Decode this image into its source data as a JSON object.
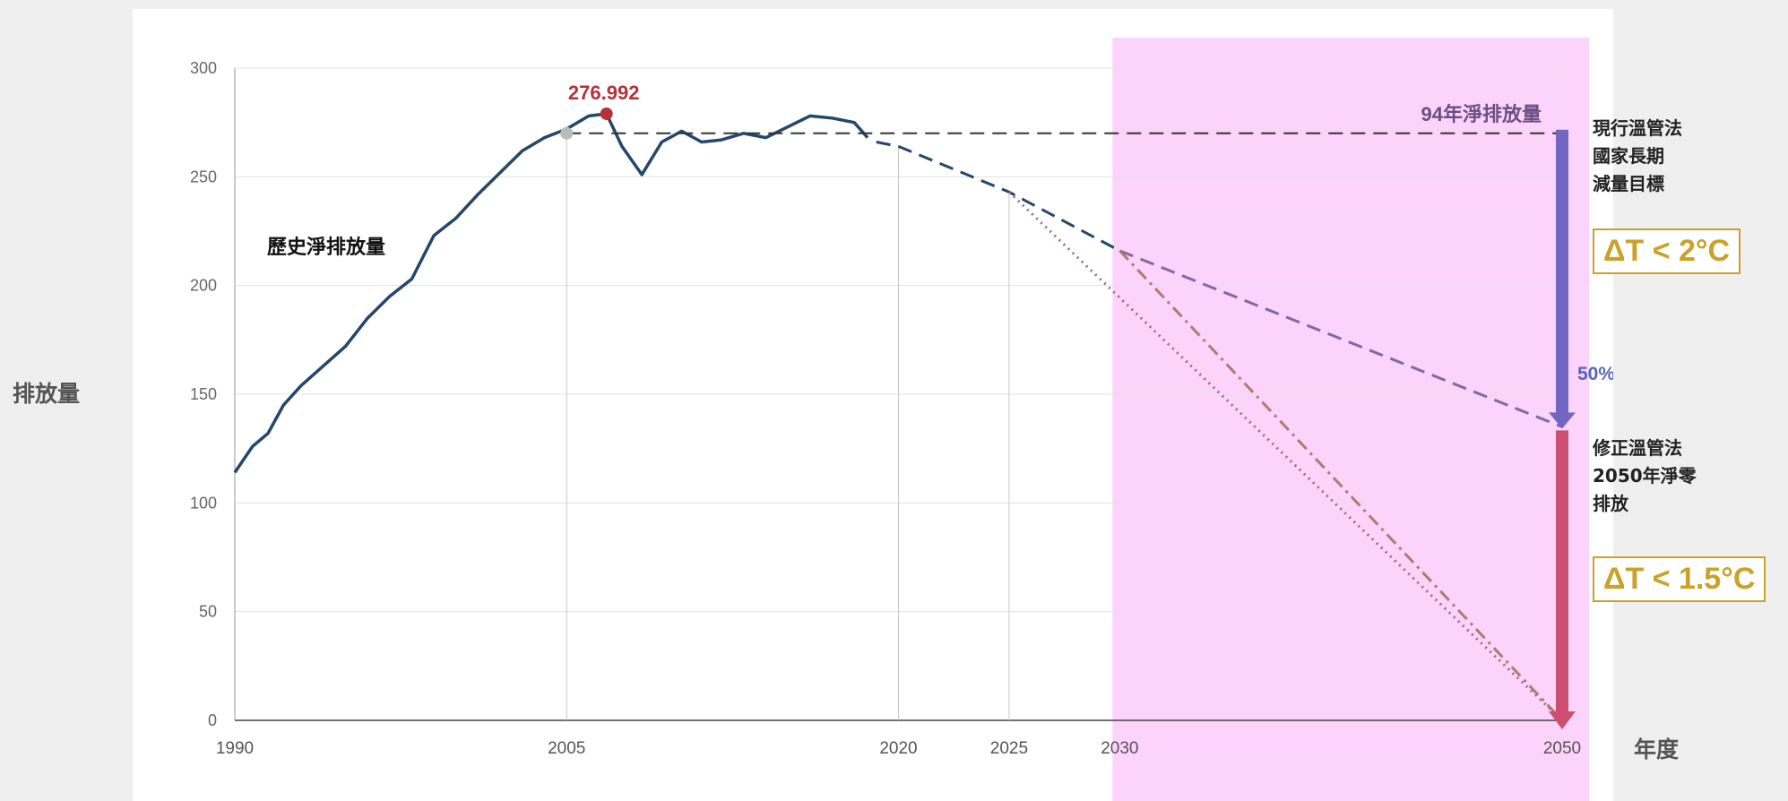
{
  "chart_data": {
    "type": "line",
    "xlabel": "年度",
    "ylabel": "排放量",
    "ylim": [
      0,
      300
    ],
    "xlim": [
      1990,
      2050
    ],
    "y_ticks": [
      "0",
      "50",
      "100",
      "150",
      "200",
      "250",
      "300"
    ],
    "x_ticks": [
      "1990",
      "2005",
      "2020",
      "2025",
      "2030",
      "2050"
    ],
    "grid": true,
    "series": [
      {
        "name": "歷史淨排放量",
        "style": "solid",
        "color": "#24476a",
        "x": [
          1990,
          1990.8,
          1991.5,
          1992.2,
          1993,
          1994,
          1995,
          1996,
          1997,
          1998,
          1999,
          2000,
          2001,
          2002,
          2003,
          2004,
          2005,
          2006,
          2006.8,
          2007.5,
          2008.4,
          2009.3,
          2010.2,
          2011.1,
          2012,
          2013,
          2014,
          2015,
          2016,
          2017,
          2018,
          2018.6
        ],
        "y": [
          114,
          126,
          132,
          145,
          154,
          163,
          172,
          185,
          195,
          203,
          223,
          231,
          242,
          252,
          262,
          268,
          272,
          278,
          279,
          264,
          251,
          266,
          271,
          266,
          267,
          270,
          268,
          273,
          278,
          277,
          275,
          268
        ]
      },
      {
        "name": "現行溫管法",
        "style": "dashed",
        "color": "#24476a",
        "x": [
          2019,
          2020,
          2025,
          2030
        ],
        "y": [
          266,
          264,
          243,
          216
        ]
      },
      {
        "name": "現行溫管法",
        "style": "dashed",
        "color": "#7d6aa8",
        "x": [
          2030,
          2050
        ],
        "y": [
          216,
          135
        ]
      },
      {
        "name": "修正溫管法",
        "style": "dashdot",
        "color": "#b07a6e",
        "x": [
          2030,
          2050
        ],
        "y": [
          216,
          0
        ]
      },
      {
        "name": "修正溫管法",
        "style": "dotted",
        "color": "#9c6d80",
        "x": [
          2025,
          2050
        ],
        "y": [
          243,
          0
        ]
      },
      {
        "name": "94年淨排放量",
        "style": "dashed",
        "color": "#333333",
        "x": [
          2005,
          2050
        ],
        "y": [
          270,
          270
        ]
      }
    ],
    "annotations": {
      "peak_label": "276.992",
      "peak_x": 2006.8,
      "peak_y": 279,
      "base_point_x": 2005,
      "base_point_y": 270,
      "baseline_label": "94年淨排放量",
      "history_label": "歷史淨排放量",
      "percent_label": "50%",
      "current_law_label": [
        "現行溫管法",
        "國家長期",
        "減量目標"
      ],
      "current_law_temp": "ΔT < 2°C",
      "amended_law_label": [
        "修正溫管法",
        "2050年淨零",
        "排放"
      ],
      "amended_law_temp": "ΔT < 1.5°C",
      "highlight_from_year": 2030,
      "arrow_top_y": 270,
      "arrow_mid_y": 135,
      "arrow_bottom_y": 0
    },
    "colors": {
      "highlight": "#fbd3fb",
      "history": "#24476a",
      "peak": "#b5323a",
      "base_point": "#bbbbbb",
      "arrow_upper": "#7266c3",
      "arrow_lower": "#cc4f72",
      "percent": "#5566b8",
      "temp_box": "#c9a227"
    }
  }
}
